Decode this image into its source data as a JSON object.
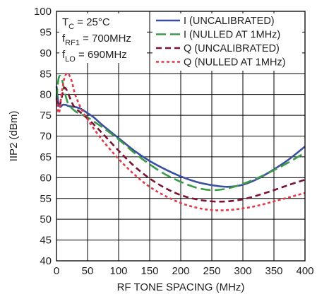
{
  "chart_data": {
    "type": "line",
    "title": "",
    "xlabel": "RF TONE SPACING (MHz)",
    "ylabel": "IIP2 (dBm)",
    "xlim": [
      0,
      400
    ],
    "ylim": [
      40,
      100
    ],
    "x_ticks": [
      "0",
      "50",
      "100",
      "150",
      "200",
      "250",
      "300",
      "350",
      "400"
    ],
    "y_ticks": [
      "40",
      "45",
      "50",
      "55",
      "60",
      "65",
      "70",
      "75",
      "80",
      "85",
      "90",
      "95",
      "100"
    ],
    "grid": true,
    "legend_position": "top-right",
    "conditions": [
      {
        "main": "T",
        "sub": "C",
        "rest": " = 25°C"
      },
      {
        "main": "f",
        "sub": "RF1",
        "rest": " = 700MHz"
      },
      {
        "main": "f",
        "sub": "LO",
        "rest": " = 690MHz"
      }
    ],
    "series": [
      {
        "name": "I (UNCALIBRATED)",
        "color": "#3b4fa0",
        "dash": "solid",
        "x": [
          0,
          3,
          6,
          10,
          15,
          20,
          30,
          40,
          50,
          60,
          75,
          100,
          125,
          150,
          175,
          200,
          225,
          250,
          275,
          300,
          325,
          350,
          375,
          400
        ],
        "y": [
          82,
          78,
          77,
          77.5,
          77.5,
          77.2,
          77,
          76.5,
          75.5,
          74.5,
          72.5,
          69.5,
          66.5,
          64,
          62,
          60.3,
          59,
          58.2,
          57.8,
          58.3,
          59.8,
          62,
          64.5,
          67.5
        ]
      },
      {
        "name": "I (NULLED AT 1MHz)",
        "color": "#3a9a48",
        "dash": "long",
        "x": [
          0,
          3,
          6,
          9,
          12,
          16,
          20,
          30,
          40,
          50,
          60,
          75,
          100,
          125,
          150,
          175,
          200,
          225,
          250,
          275,
          300,
          325,
          350,
          375,
          400
        ],
        "y": [
          79,
          83.5,
          84.5,
          83.5,
          81.5,
          79,
          77.5,
          76,
          75.2,
          74.5,
          73.5,
          72,
          69.2,
          66,
          63.2,
          60.8,
          59,
          57.6,
          57,
          57.4,
          58.5,
          60,
          61.8,
          63.8,
          66
        ]
      },
      {
        "name": "Q (UNCALIBRATED)",
        "color": "#7a1230",
        "dash": "medium",
        "x": [
          0,
          4,
          8,
          12,
          16,
          20,
          25,
          30,
          40,
          50,
          60,
          75,
          100,
          125,
          150,
          175,
          200,
          225,
          250,
          275,
          300,
          325,
          350,
          375,
          400
        ],
        "y": [
          79,
          77,
          79,
          81.5,
          81.2,
          79.8,
          78,
          76.8,
          75.5,
          74.2,
          72.8,
          70.5,
          66.5,
          62.8,
          59.8,
          57.5,
          55.8,
          54.8,
          54.3,
          54.3,
          54.8,
          55.8,
          57,
          58.3,
          59.5
        ]
      },
      {
        "name": "Q (NULLED AT 1MHz)",
        "color": "#e03a4a",
        "dash": "short",
        "x": [
          0,
          4,
          8,
          12,
          16,
          20,
          25,
          30,
          40,
          50,
          60,
          75,
          100,
          125,
          150,
          175,
          200,
          225,
          250,
          275,
          300,
          325,
          350,
          375,
          400
        ],
        "y": [
          79,
          75.5,
          80,
          83.5,
          85,
          84.8,
          83,
          80,
          76.5,
          74,
          71.8,
          68.8,
          64.5,
          60.8,
          57.8,
          55.6,
          53.9,
          52.8,
          52.2,
          52.2,
          52.6,
          53.3,
          54.3,
          55.3,
          56.3
        ]
      }
    ]
  }
}
